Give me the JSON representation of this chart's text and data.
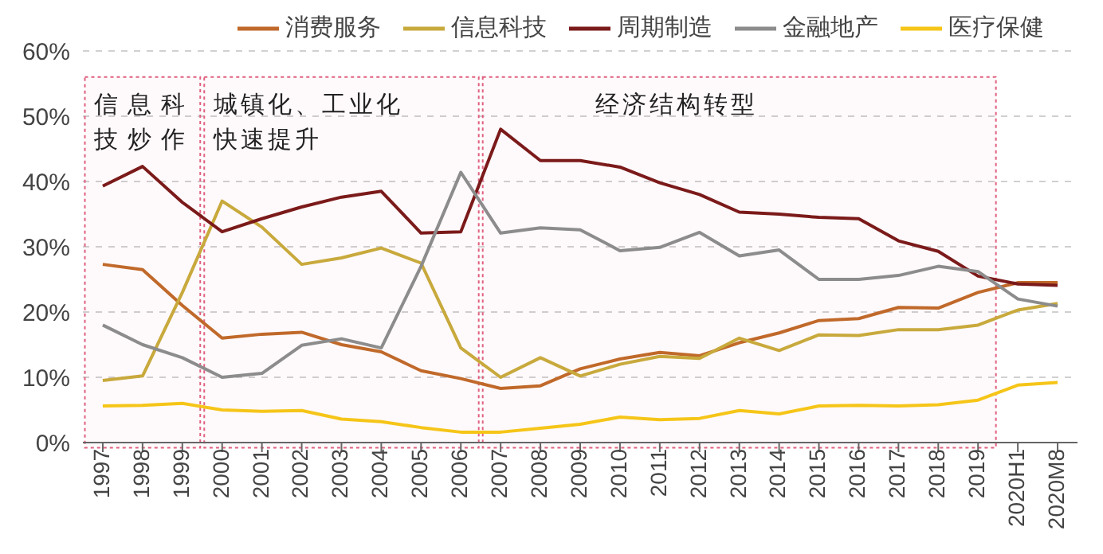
{
  "chart_data": {
    "type": "line",
    "categories": [
      "1997",
      "1998",
      "1999",
      "2000",
      "2001",
      "2002",
      "2003",
      "2004",
      "2005",
      "2006",
      "2007",
      "2008",
      "2009",
      "2010",
      "2011",
      "2012",
      "2013",
      "2014",
      "2015",
      "2016",
      "2017",
      "2018",
      "2019",
      "2020H1",
      "2020M8"
    ],
    "series": [
      {
        "name": "消费服务",
        "color": "#c0692a",
        "values": [
          27.3,
          26.5,
          21,
          16,
          16.6,
          16.9,
          15,
          13.9,
          11,
          9.8,
          8.3,
          8.7,
          11.3,
          12.8,
          13.8,
          13.3,
          15.3,
          16.8,
          18.7,
          19,
          20.7,
          20.6,
          23,
          24.5,
          24.5
        ]
      },
      {
        "name": "信息科技",
        "color": "#c8a93c",
        "values": [
          9.5,
          10.2,
          23,
          37,
          33,
          27.3,
          28.3,
          29.8,
          27.5,
          14.5,
          10,
          13,
          10.2,
          12,
          13.2,
          12.9,
          16,
          14.1,
          16.5,
          16.4,
          17.3,
          17.3,
          18,
          20.3,
          21.3
        ]
      },
      {
        "name": "周期制造",
        "color": "#7b1a1a",
        "values": [
          39.3,
          42.3,
          36.8,
          32.3,
          34.3,
          36.1,
          37.6,
          38.5,
          32.1,
          32.3,
          48,
          43.2,
          43.2,
          42.2,
          39.8,
          38,
          35.3,
          35,
          34.5,
          34.3,
          30.9,
          29.3,
          25.5,
          24.3,
          24.1
        ]
      },
      {
        "name": "金融地产",
        "color": "#8c8c8c",
        "values": [
          18,
          15,
          13,
          10,
          10.6,
          14.9,
          15.9,
          14.5,
          27,
          41.4,
          32.1,
          32.9,
          32.6,
          29.4,
          29.9,
          32.2,
          28.6,
          29.5,
          25,
          25,
          25.6,
          27,
          26.2,
          22,
          20.9
        ]
      },
      {
        "name": "医疗保健",
        "color": "#f5c518",
        "values": [
          5.6,
          5.7,
          6,
          5,
          4.8,
          4.9,
          3.6,
          3.2,
          2.3,
          1.6,
          1.6,
          2.2,
          2.8,
          3.9,
          3.5,
          3.7,
          4.9,
          4.4,
          5.6,
          5.7,
          5.6,
          5.8,
          6.5,
          8.8,
          9.2
        ]
      }
    ],
    "ylim": [
      0,
      60
    ],
    "yticks": [
      {
        "value": 0,
        "label": "0%"
      },
      {
        "value": 10,
        "label": "10%"
      },
      {
        "value": 20,
        "label": "20%"
      },
      {
        "value": 30,
        "label": "30%"
      },
      {
        "value": 40,
        "label": "40%"
      },
      {
        "value": 50,
        "label": "50%"
      },
      {
        "value": 60,
        "label": "60%"
      }
    ],
    "bands": [
      {
        "axis": "x",
        "from": "1997",
        "to": "1999",
        "label": "信息科技炒作",
        "color": "#e06080"
      },
      {
        "axis": "x",
        "from": "2000",
        "to": "2006",
        "label": "城镇化、工业化快速提升",
        "color": "#e06080"
      },
      {
        "axis": "x",
        "from": "2007",
        "to": "2019",
        "label": "经济结构转型",
        "color": "#e06080"
      }
    ],
    "grid": "y",
    "legend": "top",
    "marker": "none",
    "line_style": "solid"
  }
}
